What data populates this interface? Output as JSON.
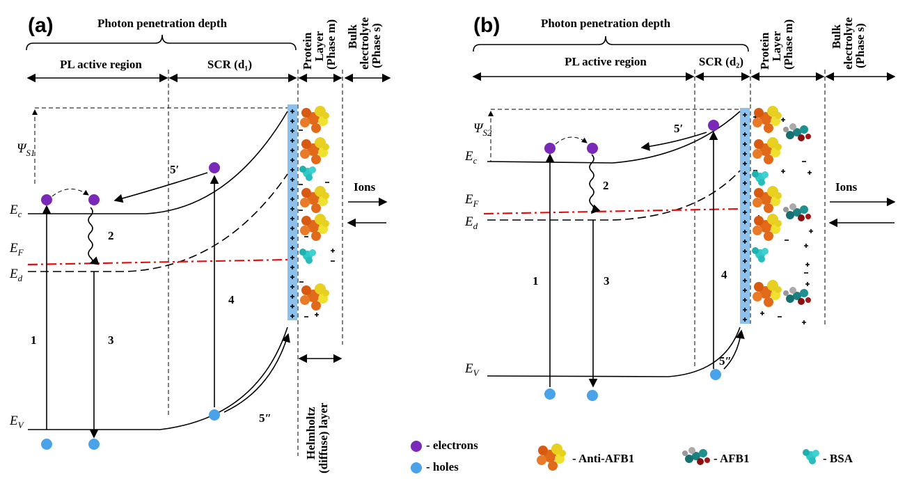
{
  "panels": [
    {
      "label": "(a)",
      "photon_depth": "Photon penetration depth",
      "pl_region": "PL active region",
      "scr": "SCR (d₁)",
      "protein_layer": [
        "Protein",
        "Layer",
        "(Phase m)"
      ],
      "bulk": [
        "Bulk",
        "electrolyte",
        "(Phase s)"
      ],
      "psi": {
        "symbol": "Ψ",
        "sub": "S1"
      },
      "levels": [
        {
          "symbol": "E",
          "sub": "c"
        },
        {
          "symbol": "E",
          "sub": "F"
        },
        {
          "symbol": "E",
          "sub": "d"
        },
        {
          "symbol": "E",
          "sub": "V"
        }
      ],
      "transitions": [
        "1",
        "2",
        "3",
        "4",
        "5′",
        "5″"
      ],
      "ions": "Ions",
      "helmholtz": [
        "Helmholtz",
        "(diffuse) layer"
      ]
    },
    {
      "label": "(b)",
      "photon_depth": "Photon penetration depth",
      "pl_region": "PL active region",
      "scr": "SCR (d₂)",
      "protein_layer": [
        "Protein",
        "Layer",
        "(Phase m)"
      ],
      "bulk": [
        "Bulk",
        "electrolyte",
        "(Phase s)"
      ],
      "psi": {
        "symbol": "Ψ",
        "sub": "S2"
      },
      "levels": [
        {
          "symbol": "E",
          "sub": "c"
        },
        {
          "symbol": "E",
          "sub": "F"
        },
        {
          "symbol": "E",
          "sub": "d"
        },
        {
          "symbol": "E",
          "sub": "V"
        }
      ],
      "transitions": [
        "1",
        "2",
        "3",
        "4",
        "5′",
        "5″"
      ],
      "ions": "Ions"
    }
  ],
  "legend": {
    "electrons": "- electrons",
    "holes": "- holes",
    "anti_afb1": "- Anti-AFB1",
    "afb1": "- AFB1",
    "bsa": "- BSA"
  }
}
